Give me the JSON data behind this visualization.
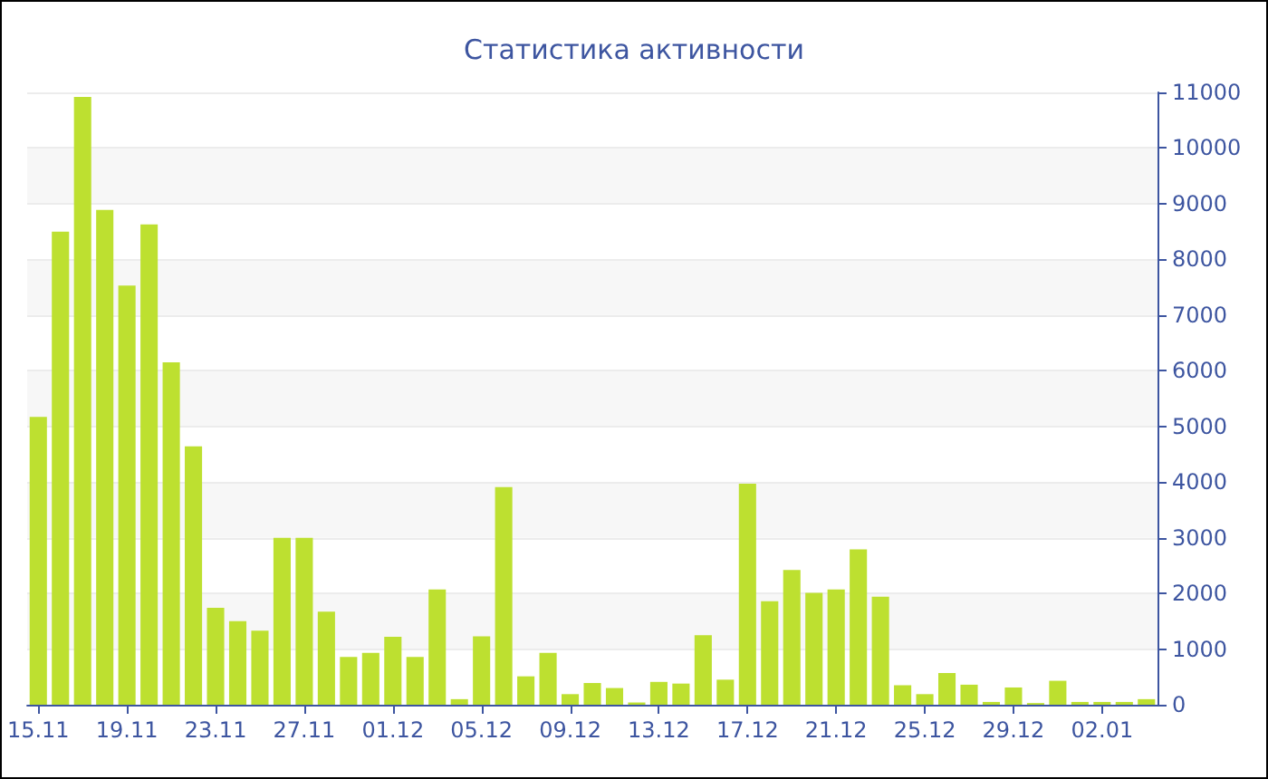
{
  "chart_data": {
    "type": "bar",
    "title": "Статистика активности",
    "categories": [
      "15.11",
      null,
      null,
      null,
      "19.11",
      null,
      null,
      null,
      "23.11",
      null,
      null,
      null,
      "27.11",
      null,
      null,
      null,
      "01.12",
      null,
      null,
      null,
      "05.12",
      null,
      null,
      null,
      "09.12",
      null,
      null,
      null,
      "13.12",
      null,
      null,
      null,
      "17.12",
      null,
      null,
      null,
      "21.12",
      null,
      null,
      null,
      "25.12",
      null,
      null,
      null,
      "29.12",
      null,
      null,
      null,
      "02.01",
      null,
      null
    ],
    "values": [
      5170,
      8500,
      10920,
      8890,
      7530,
      8630,
      6150,
      4640,
      1740,
      1500,
      1330,
      3000,
      3000,
      1670,
      860,
      930,
      1220,
      860,
      2070,
      100,
      1230,
      3910,
      510,
      930,
      190,
      390,
      300,
      40,
      410,
      380,
      1250,
      450,
      3970,
      1860,
      2420,
      2010,
      2070,
      2790,
      1940,
      350,
      190,
      570,
      360,
      50,
      310,
      30,
      430,
      50,
      50,
      50,
      100
    ],
    "color": "#bde030",
    "ylim": [
      0,
      11000
    ],
    "yticks": [
      0,
      1000,
      2000,
      3000,
      4000,
      5000,
      6000,
      7000,
      8000,
      9000,
      10000,
      11000
    ],
    "grid": "y"
  }
}
